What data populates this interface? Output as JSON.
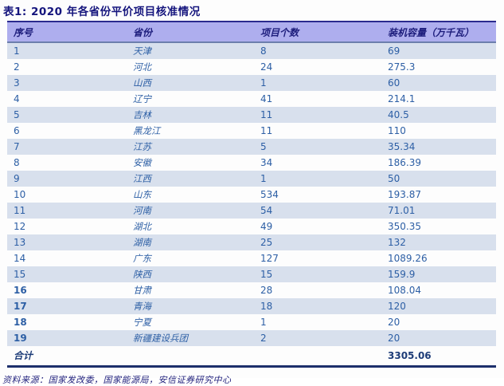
{
  "table": {
    "title": "表1: 2020 年各省份平价项目核准情况",
    "columns": [
      "序号",
      "省份",
      "项目个数",
      "装机容量（万千瓦）"
    ],
    "rows": [
      {
        "no": "1",
        "province": "天津",
        "count": "8",
        "capacity": "69"
      },
      {
        "no": "2",
        "province": "河北",
        "count": "24",
        "capacity": "275.3"
      },
      {
        "no": "3",
        "province": "山西",
        "count": "1",
        "capacity": "60"
      },
      {
        "no": "4",
        "province": "辽宁",
        "count": "41",
        "capacity": "214.1"
      },
      {
        "no": "5",
        "province": "吉林",
        "count": "11",
        "capacity": "40.5"
      },
      {
        "no": "6",
        "province": "黑龙江",
        "count": "11",
        "capacity": "110"
      },
      {
        "no": "7",
        "province": "江苏",
        "count": "5",
        "capacity": "35.34"
      },
      {
        "no": "8",
        "province": "安徽",
        "count": "34",
        "capacity": "186.39"
      },
      {
        "no": "9",
        "province": "江西",
        "count": "1",
        "capacity": "50"
      },
      {
        "no": "10",
        "province": "山东",
        "count": "534",
        "capacity": "193.87"
      },
      {
        "no": "11",
        "province": "河南",
        "count": "54",
        "capacity": "71.01"
      },
      {
        "no": "12",
        "province": "湖北",
        "count": "49",
        "capacity": "350.35"
      },
      {
        "no": "13",
        "province": "湖南",
        "count": "25",
        "capacity": "132"
      },
      {
        "no": "14",
        "province": "广东",
        "count": "127",
        "capacity": "1089.26"
      },
      {
        "no": "15",
        "province": "陕西",
        "count": "15",
        "capacity": "159.9"
      },
      {
        "no": "16",
        "province": "甘肃",
        "count": "28",
        "capacity": "108.04"
      },
      {
        "no": "17",
        "province": "青海",
        "count": "18",
        "capacity": "120"
      },
      {
        "no": "18",
        "province": "宁夏",
        "count": "1",
        "capacity": "20"
      },
      {
        "no": "19",
        "province": "新疆建设兵团",
        "count": "2",
        "capacity": "20"
      }
    ],
    "total": {
      "label": "合计",
      "count": "",
      "capacity": "3305.06"
    }
  },
  "source": "资料来源：国家发改委，国家能源局，安信证券研究中心",
  "colors": {
    "title_text": "#15157d",
    "header_bg": "#aeaeee",
    "header_text": "#1d1d7c",
    "row_alt_bg": "#d8e0ed",
    "data_text": "#2d5fa5",
    "border_top": "#2b2b8e",
    "border_bottom": "#1d2f6b",
    "source_text": "#23237e"
  }
}
